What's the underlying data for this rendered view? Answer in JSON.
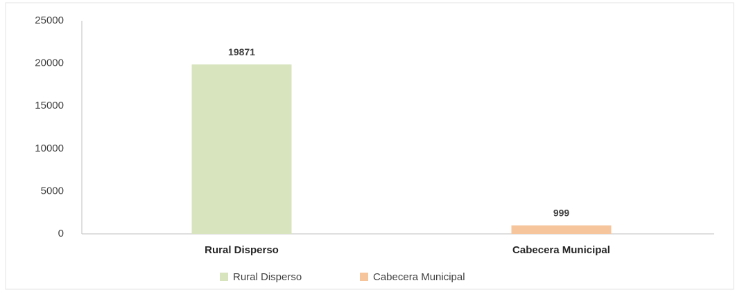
{
  "chart_data": {
    "type": "bar",
    "categories": [
      "Rural Disperso",
      "Cabecera Municipal"
    ],
    "values": [
      19871,
      999
    ],
    "colors": [
      "#d7e4bd",
      "#f6c59b"
    ],
    "ylim": [
      0,
      25000
    ],
    "yticks": [
      0,
      5000,
      10000,
      15000,
      20000,
      25000
    ],
    "grid": false,
    "legend": "bottom"
  }
}
